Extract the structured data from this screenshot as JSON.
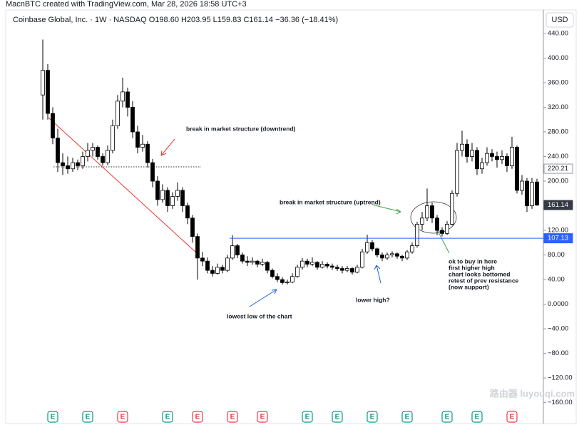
{
  "chart_data": {
    "type": "candlestick",
    "header": "MacnBTC created with TradingView.com, Mar 28, 2026 18:58 UTC+3",
    "legend": "Coinbase Global, Inc. · 1W · NASDAQ  O198.60  H203.95  L159.83  C161.14  −36.36 (−18.41%)",
    "currency": "USD",
    "up_color": "#ffffff",
    "down_color": "#000000",
    "wick_color": "#000000",
    "ylim": [
      -172,
      448
    ],
    "yticks": [
      {
        "value": 440,
        "label": "440.00"
      },
      {
        "value": 400,
        "label": "400.00"
      },
      {
        "value": 360,
        "label": "360.00"
      },
      {
        "value": 320,
        "label": "320.00"
      },
      {
        "value": 280,
        "label": "280.00"
      },
      {
        "value": 240,
        "label": "240.00"
      },
      {
        "value": 200,
        "label": "200.00"
      },
      {
        "value": 160,
        "label": "160.00"
      },
      {
        "value": 120,
        "label": "120.00"
      },
      {
        "value": 80,
        "label": "80.00"
      },
      {
        "value": 40,
        "label": "40.00"
      },
      {
        "value": 0,
        "label": "0.0000"
      },
      {
        "value": -40,
        "label": "−40.00"
      },
      {
        "value": -80,
        "label": "−80.00"
      },
      {
        "value": -120,
        "label": "−120.00"
      },
      {
        "value": -160,
        "label": "−160.00"
      }
    ],
    "price_labels": [
      220.21,
      161.14,
      107.13
    ],
    "candles": [
      [
        340,
        430,
        300,
        380
      ],
      [
        380,
        390,
        300,
        310
      ],
      [
        310,
        320,
        260,
        270
      ],
      [
        270,
        285,
        215,
        230
      ],
      [
        230,
        245,
        210,
        225
      ],
      [
        225,
        240,
        212,
        220
      ],
      [
        220,
        238,
        215,
        230
      ],
      [
        230,
        235,
        218,
        225
      ],
      [
        225,
        248,
        220,
        240
      ],
      [
        240,
        262,
        232,
        250
      ],
      [
        250,
        262,
        240,
        255
      ],
      [
        255,
        258,
        235,
        240
      ],
      [
        240,
        245,
        225,
        230
      ],
      [
        230,
        258,
        226,
        250
      ],
      [
        250,
        300,
        245,
        290
      ],
      [
        290,
        340,
        285,
        330
      ],
      [
        330,
        368,
        320,
        345
      ],
      [
        345,
        352,
        305,
        320
      ],
      [
        320,
        330,
        270,
        280
      ],
      [
        280,
        290,
        245,
        255
      ],
      [
        255,
        275,
        248,
        260
      ],
      [
        260,
        265,
        222,
        230
      ],
      [
        230,
        236,
        190,
        200
      ],
      [
        200,
        208,
        160,
        170
      ],
      [
        170,
        195,
        165,
        185
      ],
      [
        185,
        190,
        150,
        160
      ],
      [
        160,
        182,
        155,
        175
      ],
      [
        175,
        198,
        168,
        185
      ],
      [
        185,
        190,
        150,
        160
      ],
      [
        160,
        165,
        130,
        140
      ],
      [
        140,
        145,
        100,
        110
      ],
      [
        110,
        115,
        40,
        75
      ],
      [
        75,
        85,
        62,
        70
      ],
      [
        70,
        76,
        50,
        55
      ],
      [
        55,
        62,
        45,
        50
      ],
      [
        50,
        66,
        48,
        60
      ],
      [
        60,
        64,
        50,
        55
      ],
      [
        55,
        80,
        52,
        75
      ],
      [
        75,
        112,
        72,
        95
      ],
      [
        95,
        98,
        75,
        80
      ],
      [
        80,
        84,
        66,
        70
      ],
      [
        70,
        78,
        62,
        68
      ],
      [
        68,
        76,
        64,
        70
      ],
      [
        70,
        72,
        60,
        65
      ],
      [
        65,
        74,
        62,
        68
      ],
      [
        68,
        70,
        50,
        55
      ],
      [
        55,
        58,
        42,
        45
      ],
      [
        45,
        50,
        36,
        40
      ],
      [
        40,
        44,
        32,
        35
      ],
      [
        35,
        40,
        32,
        36
      ],
      [
        36,
        50,
        34,
        45
      ],
      [
        45,
        64,
        43,
        60
      ],
      [
        60,
        75,
        56,
        70
      ],
      [
        70,
        74,
        60,
        65
      ],
      [
        65,
        76,
        62,
        68
      ],
      [
        68,
        70,
        56,
        60
      ],
      [
        60,
        70,
        58,
        65
      ],
      [
        65,
        68,
        58,
        62
      ],
      [
        62,
        66,
        56,
        60
      ],
      [
        60,
        64,
        54,
        58
      ],
      [
        58,
        62,
        50,
        55
      ],
      [
        55,
        62,
        52,
        58
      ],
      [
        58,
        60,
        48,
        52
      ],
      [
        52,
        64,
        50,
        60
      ],
      [
        60,
        90,
        58,
        85
      ],
      [
        85,
        113,
        82,
        100
      ],
      [
        100,
        104,
        86,
        90
      ],
      [
        90,
        92,
        76,
        80
      ],
      [
        80,
        84,
        70,
        75
      ],
      [
        75,
        84,
        72,
        80
      ],
      [
        80,
        86,
        76,
        82
      ],
      [
        82,
        84,
        74,
        78
      ],
      [
        78,
        80,
        70,
        75
      ],
      [
        75,
        88,
        72,
        85
      ],
      [
        85,
        100,
        82,
        95
      ],
      [
        95,
        134,
        92,
        130
      ],
      [
        130,
        150,
        120,
        140
      ],
      [
        140,
        188,
        135,
        160
      ],
      [
        160,
        165,
        132,
        140
      ],
      [
        140,
        145,
        112,
        120
      ],
      [
        120,
        125,
        110,
        115
      ],
      [
        115,
        135,
        112,
        130
      ],
      [
        130,
        185,
        128,
        180
      ],
      [
        180,
        262,
        175,
        250
      ],
      [
        250,
        282,
        240,
        260
      ],
      [
        260,
        268,
        230,
        240
      ],
      [
        240,
        262,
        232,
        250
      ],
      [
        250,
        255,
        210,
        220
      ],
      [
        220,
        238,
        212,
        230
      ],
      [
        230,
        255,
        225,
        245
      ],
      [
        245,
        252,
        232,
        240
      ],
      [
        240,
        248,
        222,
        235
      ],
      [
        235,
        250,
        228,
        240
      ],
      [
        240,
        245,
        215,
        225
      ],
      [
        225,
        272,
        220,
        255
      ],
      [
        255,
        258,
        180,
        185
      ],
      [
        185,
        210,
        178,
        200
      ],
      [
        200,
        205,
        150,
        160
      ],
      [
        160,
        205,
        155,
        198
      ],
      [
        198.6,
        203.95,
        159.83,
        161.14
      ]
    ],
    "annotations": [
      "break in market structure (downtrend)",
      "break in market structure (uptrend)",
      "lowest low of the chart",
      "lower high?"
    ],
    "note_lines": [
      "ok to buy in here",
      "first higher high",
      "chart looks bottomed",
      "retest of prev resistance",
      "(now support)"
    ],
    "earnings": [
      {
        "label": "E",
        "color": "#089981"
      },
      {
        "label": "E",
        "color": "#089981"
      },
      {
        "label": "E",
        "color": "#f23645"
      },
      {
        "label": "E",
        "color": "#089981"
      },
      {
        "label": "E",
        "color": "#f23645"
      },
      {
        "label": "E",
        "color": "#f23645"
      },
      {
        "label": "E",
        "color": "#f23645"
      },
      {
        "label": "E",
        "color": "#089981"
      },
      {
        "label": "E",
        "color": "#089981"
      },
      {
        "label": "E",
        "color": "#089981"
      },
      {
        "label": "E",
        "color": "#089981"
      },
      {
        "label": "E",
        "color": "#089981"
      },
      {
        "label": "E",
        "color": "#089981"
      },
      {
        "label": "E",
        "color": "#f23645"
      }
    ],
    "watermark": "路由器 luyouqi.com"
  }
}
